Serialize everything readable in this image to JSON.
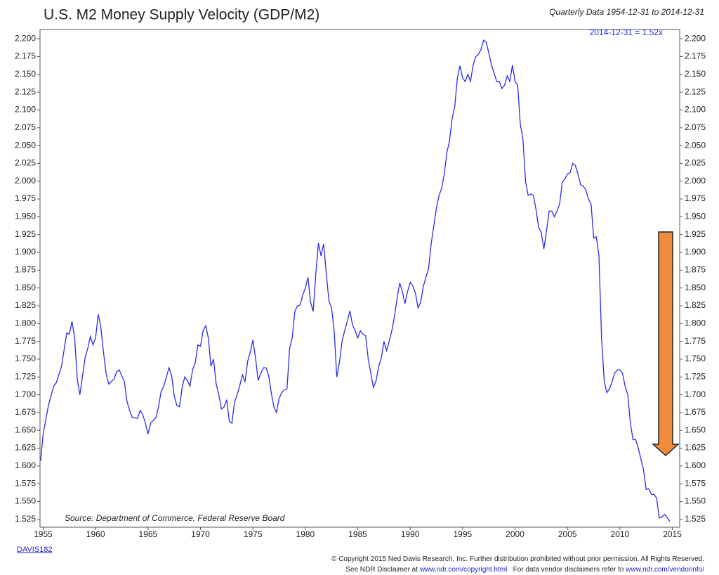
{
  "chart_data": {
    "type": "line",
    "title": "U.S. M2 Money Supply Velocity (GDP/M2)",
    "subtitle": "Quarterly Data 1954-12-31 to 2014-12-31",
    "annotation": "2014-12-31 = 1.52x",
    "source": "Source:   Department of Commerce, Federal Reserve Board",
    "xlim": [
      1954.7,
      2015.7
    ],
    "ylim": [
      1.514,
      2.213
    ],
    "xticks": [
      1955,
      1960,
      1965,
      1970,
      1975,
      1980,
      1985,
      1990,
      1995,
      2000,
      2005,
      2010,
      2015
    ],
    "yticks": [
      {
        "value": 1.525,
        "label": "1.525"
      },
      {
        "value": 1.55,
        "label": "1.550"
      },
      {
        "value": 1.575,
        "label": "1.575"
      },
      {
        "value": 1.6,
        "label": "1.600"
      },
      {
        "value": 1.625,
        "label": "1.625"
      },
      {
        "value": 1.65,
        "label": "1.650"
      },
      {
        "value": 1.675,
        "label": "1.675"
      },
      {
        "value": 1.7,
        "label": "1.700"
      },
      {
        "value": 1.725,
        "label": "1.725"
      },
      {
        "value": 1.75,
        "label": "1.750"
      },
      {
        "value": 1.775,
        "label": "1.775"
      },
      {
        "value": 1.8,
        "label": "1.800"
      },
      {
        "value": 1.825,
        "label": "1.825"
      },
      {
        "value": 1.85,
        "label": "1.850"
      },
      {
        "value": 1.875,
        "label": "1.875"
      },
      {
        "value": 1.9,
        "label": "1.900"
      },
      {
        "value": 1.925,
        "label": "1.925"
      },
      {
        "value": 1.95,
        "label": "1.950"
      },
      {
        "value": 1.975,
        "label": "1.975"
      },
      {
        "value": 2.0,
        "label": "2.000"
      },
      {
        "value": 2.025,
        "label": "2.025"
      },
      {
        "value": 2.05,
        "label": "2.050"
      },
      {
        "value": 2.075,
        "label": "2.075"
      },
      {
        "value": 2.1,
        "label": "2.100"
      },
      {
        "value": 2.125,
        "label": "2.125"
      },
      {
        "value": 2.15,
        "label": "2.150"
      },
      {
        "value": 2.175,
        "label": "2.175"
      },
      {
        "value": 2.2,
        "label": "2.200"
      }
    ],
    "x": [
      1954.75,
      1955,
      1955.5,
      1956,
      1956.25,
      1956.75,
      1957.25,
      1957.5,
      1957.75,
      1958,
      1958.25,
      1958.5,
      1959,
      1959.25,
      1959.5,
      1959.75,
      1960,
      1960.25,
      1960.5,
      1960.75,
      1961,
      1961.25,
      1961.75,
      1962,
      1962.25,
      1962.75,
      1963,
      1963.25,
      1963.5,
      1964,
      1964.25,
      1964.5,
      1964.75,
      1965,
      1965.25,
      1965.75,
      1966,
      1966.25,
      1966.5,
      1966.75,
      1967,
      1967.25,
      1967.5,
      1967.75,
      1968,
      1968.25,
      1968.5,
      1968.75,
      1969,
      1969.25,
      1969.5,
      1969.75,
      1970,
      1970.25,
      1970.5,
      1970.75,
      1971,
      1971.25,
      1971.5,
      1971.75,
      1972,
      1972.25,
      1972.5,
      1972.75,
      1973,
      1973.25,
      1973.5,
      1973.75,
      1974,
      1974.25,
      1974.5,
      1974.75,
      1975,
      1975.25,
      1975.5,
      1975.75,
      1976,
      1976.25,
      1976.5,
      1976.75,
      1977,
      1977.25,
      1977.5,
      1977.75,
      1978,
      1978.25,
      1978.5,
      1978.75,
      1979,
      1979.25,
      1979.5,
      1979.75,
      1980,
      1980.25,
      1980.5,
      1980.75,
      1981,
      1981.25,
      1981.5,
      1981.75,
      1982,
      1982.25,
      1982.5,
      1982.75,
      1983,
      1983.25,
      1983.5,
      1983.75,
      1984,
      1984.25,
      1984.5,
      1984.75,
      1985,
      1985.25,
      1985.5,
      1985.75,
      1986,
      1986.25,
      1986.5,
      1986.75,
      1987,
      1987.25,
      1987.5,
      1987.75,
      1988,
      1988.25,
      1988.5,
      1988.75,
      1989,
      1989.25,
      1989.5,
      1989.75,
      1990,
      1990.25,
      1990.5,
      1990.75,
      1991,
      1991.25,
      1991.5,
      1991.75,
      1992,
      1992.25,
      1992.5,
      1992.75,
      1993,
      1993.25,
      1993.5,
      1993.75,
      1994,
      1994.25,
      1994.5,
      1994.75,
      1995,
      1995.25,
      1995.5,
      1995.75,
      1996,
      1996.25,
      1996.5,
      1996.75,
      1997,
      1997.25,
      1997.5,
      1997.75,
      1998,
      1998.25,
      1998.5,
      1998.75,
      1999,
      1999.25,
      1999.5,
      1999.75,
      2000,
      2000.25,
      2000.5,
      2000.75,
      2001,
      2001.25,
      2001.5,
      2001.75,
      2002,
      2002.25,
      2002.5,
      2002.75,
      2003,
      2003.25,
      2003.5,
      2003.75,
      2004,
      2004.25,
      2004.5,
      2004.75,
      2005,
      2005.25,
      2005.5,
      2005.75,
      2006,
      2006.25,
      2006.5,
      2006.75,
      2007,
      2007.25,
      2007.5,
      2007.75,
      2008,
      2008.25,
      2008.5,
      2008.75,
      2009,
      2009.25,
      2009.5,
      2009.75,
      2010,
      2010.25,
      2010.5,
      2010.75,
      2011,
      2011.25,
      2011.5,
      2011.75,
      2012,
      2012.25,
      2012.5,
      2012.75,
      2013,
      2013.25,
      2013.5,
      2013.75,
      2014,
      2014.25,
      2014.5,
      2014.75
    ],
    "series": [
      {
        "name": "M2 Velocity",
        "color": "#2b2bf0",
        "values": [
          1.607,
          1.645,
          1.685,
          1.712,
          1.717,
          1.74,
          1.787,
          1.785,
          1.803,
          1.78,
          1.722,
          1.7,
          1.752,
          1.765,
          1.782,
          1.77,
          1.78,
          1.813,
          1.795,
          1.76,
          1.73,
          1.715,
          1.722,
          1.732,
          1.735,
          1.718,
          1.69,
          1.678,
          1.668,
          1.667,
          1.678,
          1.672,
          1.66,
          1.645,
          1.66,
          1.668,
          1.683,
          1.705,
          1.712,
          1.725,
          1.738,
          1.727,
          1.698,
          1.685,
          1.683,
          1.71,
          1.725,
          1.72,
          1.712,
          1.735,
          1.745,
          1.77,
          1.768,
          1.79,
          1.797,
          1.78,
          1.74,
          1.75,
          1.715,
          1.7,
          1.68,
          1.683,
          1.693,
          1.663,
          1.66,
          1.69,
          1.7,
          1.713,
          1.728,
          1.718,
          1.747,
          1.76,
          1.777,
          1.752,
          1.72,
          1.73,
          1.738,
          1.738,
          1.727,
          1.703,
          1.683,
          1.675,
          1.695,
          1.703,
          1.707,
          1.708,
          1.765,
          1.78,
          1.817,
          1.825,
          1.826,
          1.84,
          1.85,
          1.865,
          1.83,
          1.817,
          1.87,
          1.913,
          1.895,
          1.912,
          1.87,
          1.832,
          1.822,
          1.79,
          1.725,
          1.745,
          1.775,
          1.79,
          1.803,
          1.818,
          1.798,
          1.79,
          1.78,
          1.79,
          1.785,
          1.783,
          1.75,
          1.73,
          1.71,
          1.72,
          1.74,
          1.752,
          1.775,
          1.762,
          1.775,
          1.79,
          1.81,
          1.835,
          1.857,
          1.845,
          1.828,
          1.845,
          1.858,
          1.853,
          1.843,
          1.822,
          1.83,
          1.852,
          1.865,
          1.877,
          1.912,
          1.937,
          1.962,
          1.98,
          1.99,
          2.01,
          2.04,
          2.057,
          2.088,
          2.105,
          2.145,
          2.162,
          2.145,
          2.14,
          2.15,
          2.14,
          2.163,
          2.175,
          2.178,
          2.185,
          2.198,
          2.195,
          2.18,
          2.163,
          2.152,
          2.14,
          2.14,
          2.13,
          2.135,
          2.148,
          2.14,
          2.163,
          2.14,
          2.135,
          2.08,
          2.06,
          2.0,
          1.98,
          1.982,
          1.98,
          1.96,
          1.935,
          1.928,
          1.905,
          1.93,
          1.958,
          1.958,
          1.95,
          1.958,
          1.968,
          1.998,
          2.003,
          2.01,
          2.012,
          2.025,
          2.022,
          2.01,
          1.995,
          1.993,
          1.988,
          1.975,
          1.968,
          1.92,
          1.922,
          1.895,
          1.78,
          1.72,
          1.703,
          1.708,
          1.718,
          1.73,
          1.735,
          1.735,
          1.73,
          1.712,
          1.7,
          1.66,
          1.637,
          1.637,
          1.625,
          1.61,
          1.595,
          1.567,
          1.568,
          1.56,
          1.56,
          1.555,
          1.527,
          1.528,
          1.532,
          1.528,
          1.522
        ]
      }
    ]
  },
  "footer": {
    "code": "DAVIS182",
    "copyright": "© Copyright 2015 Ned Davis Research, Inc. Further distribution prohibited without prior permission. All Rights Reserved.",
    "disclaimer_prefix": "See NDR Disclaimer at ",
    "disclaimer_link": "www.ndr.com/copyright.html",
    "vendor_prefix": "For data vendor disclaimers refer to ",
    "vendor_link": "www.ndr.com/vendorinfo/"
  }
}
